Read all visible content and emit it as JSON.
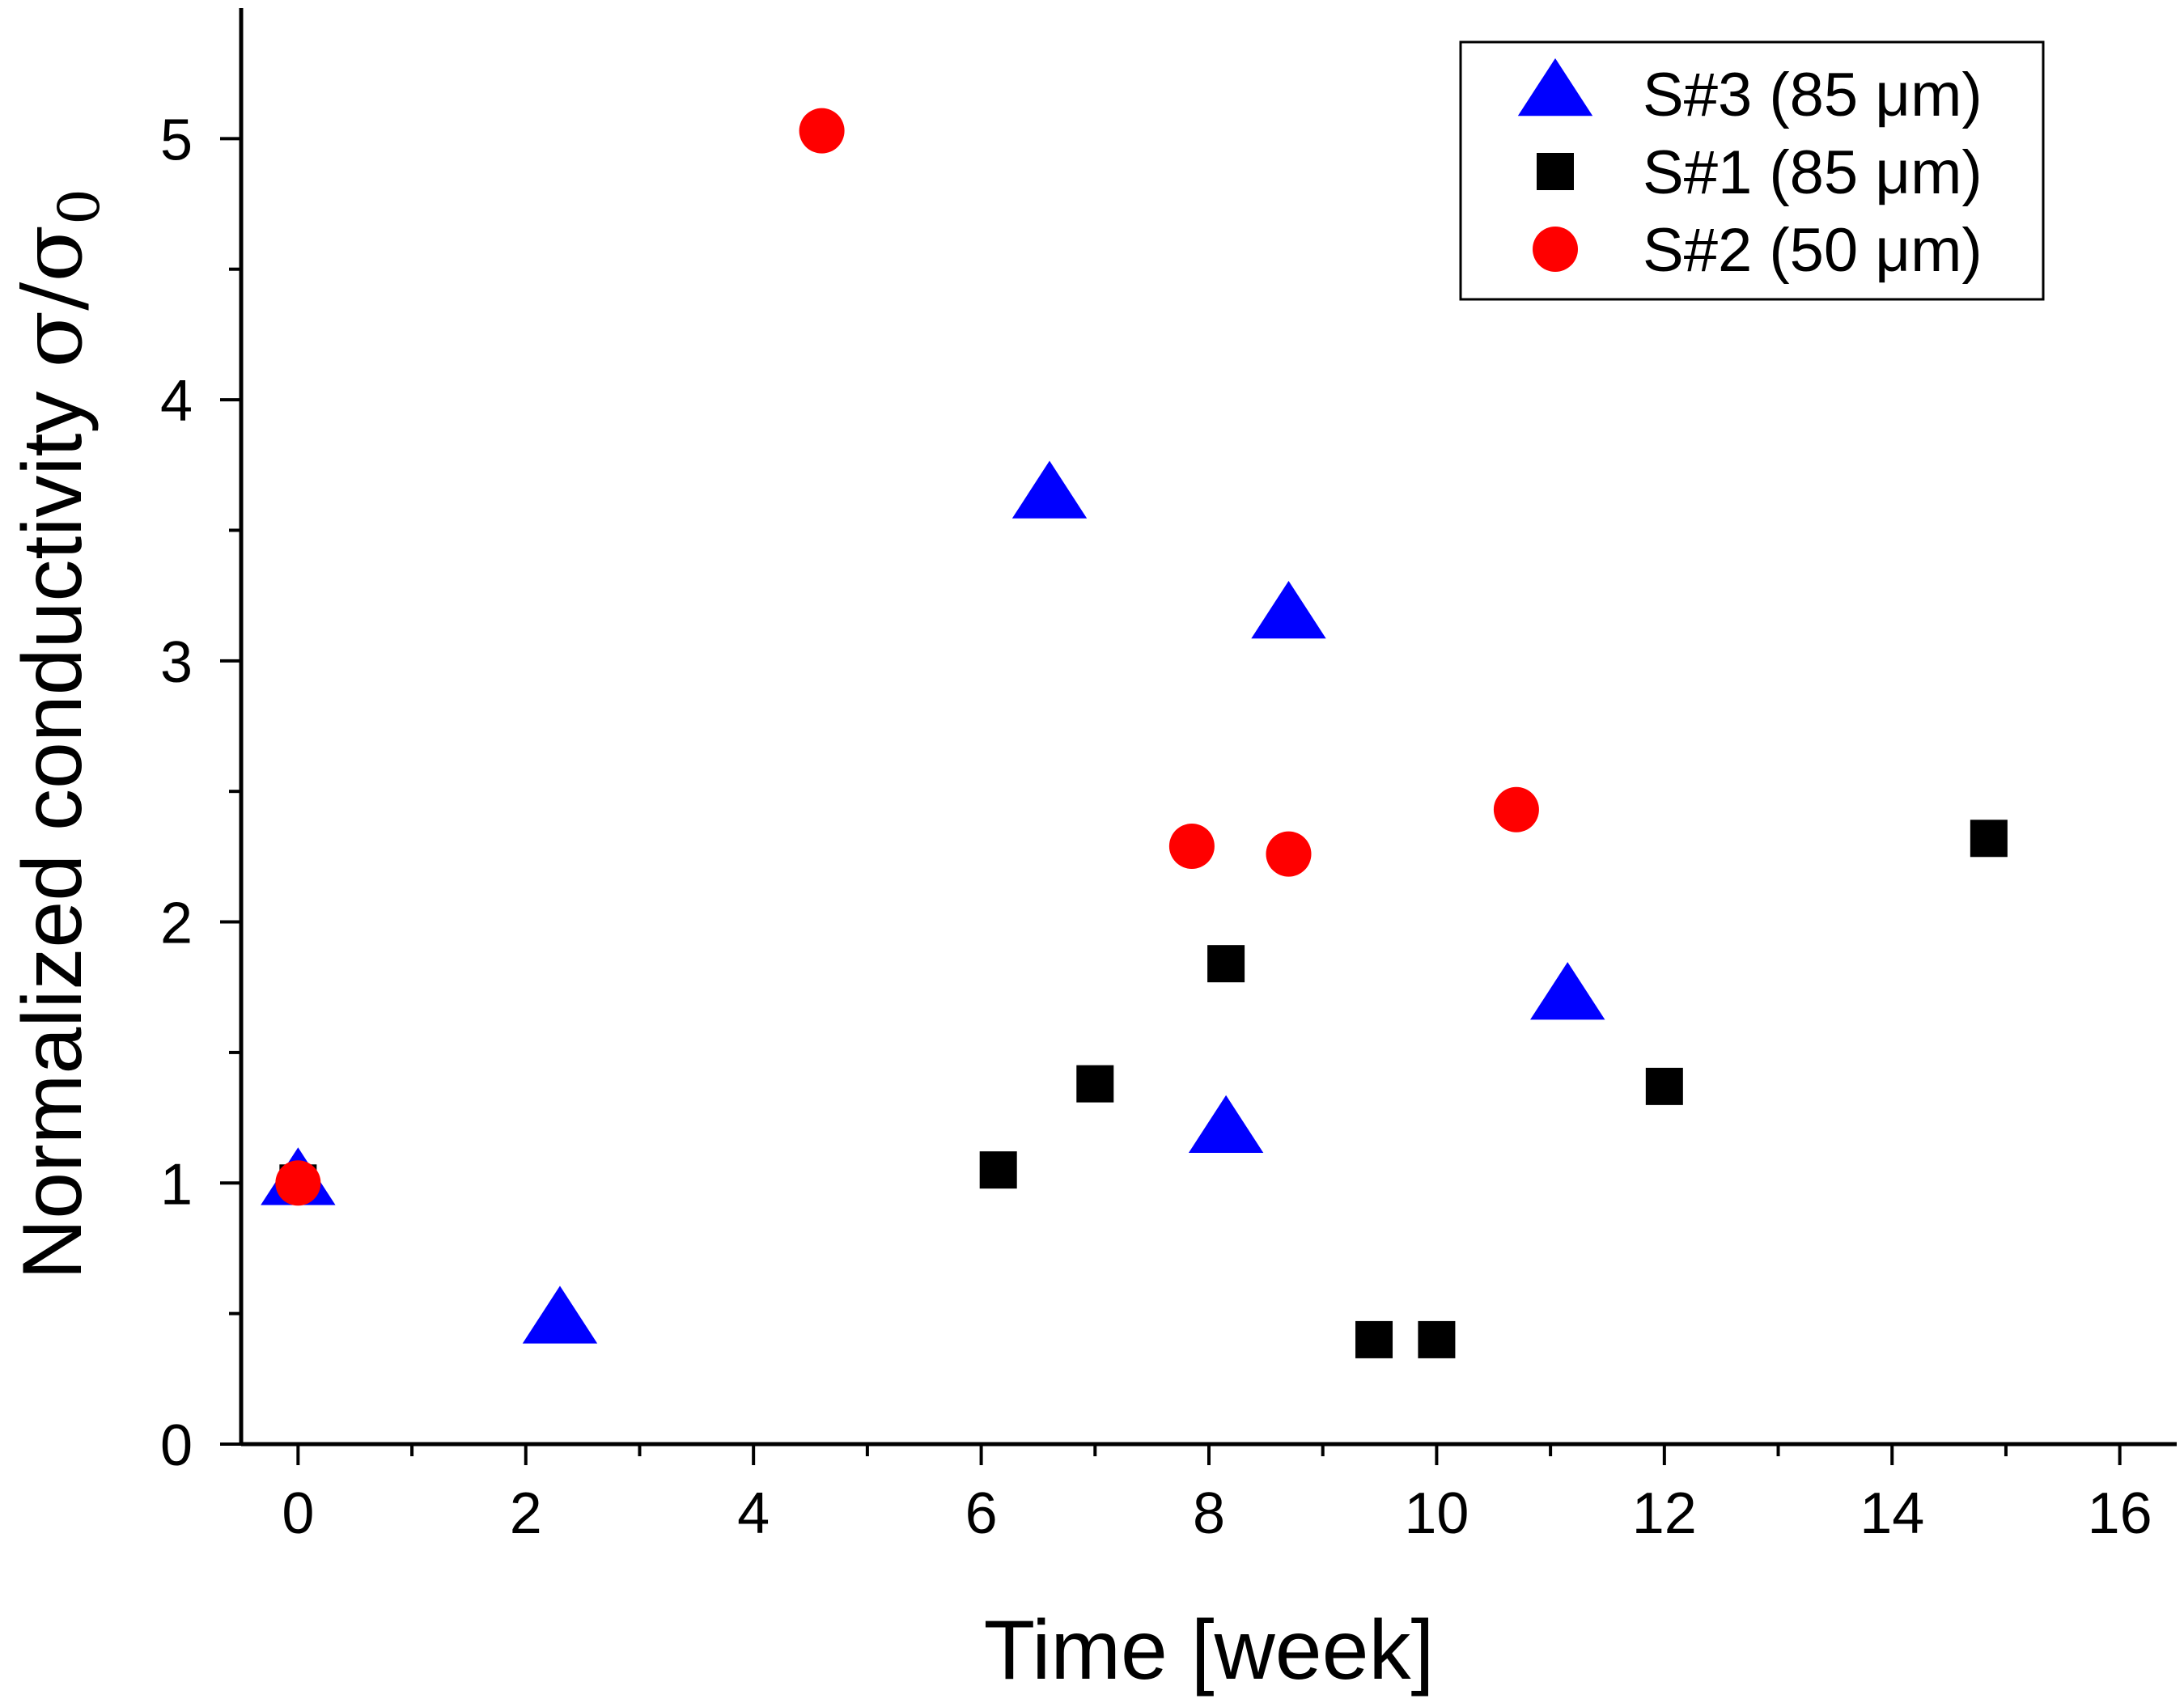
{
  "chart_data": {
    "type": "scatter",
    "title": "",
    "xlabel": "Time [week]",
    "ylabel_main": "Normalized conductivity ",
    "ylabel_math": "σ/σ",
    "ylabel_sub": "0",
    "xlim": [
      -0.5,
      16.5
    ],
    "ylim": [
      0,
      5.5
    ],
    "x_major_ticks": [
      0,
      2,
      4,
      6,
      8,
      10,
      12,
      14,
      16
    ],
    "x_tick_labels": [
      "0",
      "2",
      "4",
      "6",
      "8",
      "10",
      "12",
      "14",
      "16"
    ],
    "x_minor_ticks": [
      1,
      3,
      5,
      7,
      9,
      11,
      13,
      15
    ],
    "y_major_ticks": [
      0,
      1,
      2,
      3,
      4,
      5
    ],
    "y_tick_labels": [
      "0",
      "1",
      "2",
      "3",
      "4",
      "5"
    ],
    "y_minor_ticks": [
      0.5,
      1.5,
      2.5,
      3.5,
      4.5
    ],
    "grid": false,
    "legend_position": "top-right",
    "series": [
      {
        "name": "S#3 (85 μm)",
        "marker": "triangle",
        "color": "#0000ff",
        "points": [
          [
            0,
            1.0
          ],
          [
            2.3,
            0.47
          ],
          [
            6.6,
            3.63
          ],
          [
            8.15,
            1.2
          ],
          [
            8.7,
            3.17
          ],
          [
            11.15,
            1.71
          ]
        ]
      },
      {
        "name": "S#1 (85 μm)",
        "marker": "square",
        "color": "#000000",
        "points": [
          [
            0,
            1.0
          ],
          [
            6.15,
            1.05
          ],
          [
            7.0,
            1.38
          ],
          [
            8.15,
            1.84
          ],
          [
            9.45,
            0.4
          ],
          [
            10.0,
            0.4
          ],
          [
            12.0,
            1.37
          ],
          [
            14.85,
            2.32
          ]
        ]
      },
      {
        "name": "S#2 (50 μm)",
        "marker": "circle",
        "color": "#ff0000",
        "points": [
          [
            0,
            1.0
          ],
          [
            4.6,
            5.03
          ],
          [
            7.85,
            2.29
          ],
          [
            8.7,
            2.26
          ],
          [
            10.7,
            2.43
          ]
        ]
      }
    ]
  }
}
